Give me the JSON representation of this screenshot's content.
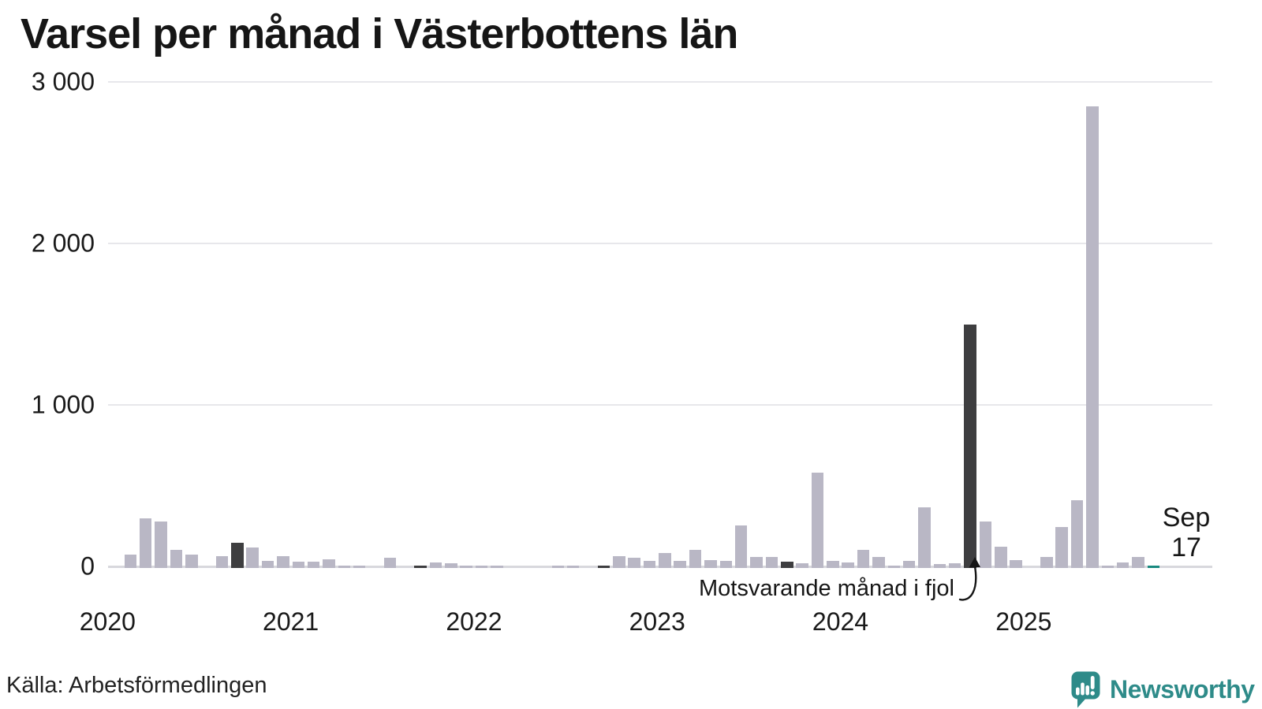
{
  "title": "Varsel per månad i Västerbottens län",
  "source": "Källa: Arbetsförmedlingen",
  "annotation": {
    "text": "Motsvarande månad i fjol"
  },
  "current_point_label": {
    "month": "Sep",
    "value": "17"
  },
  "branding": {
    "name": "Newsworthy"
  },
  "colors": {
    "bar_normal": "#b9b7c5",
    "bar_previous_year_month": "#3e3e40",
    "bar_current": "#18897f",
    "grid": "#e7e7eb",
    "axis_zero": "#d8d8dd",
    "text": "#1a1a1a",
    "brand_teal": "#2e8b89"
  },
  "chart_data": {
    "type": "bar",
    "title": "Varsel per månad i Västerbottens län",
    "xlabel": "",
    "ylabel": "",
    "ylim": [
      0,
      3000
    ],
    "grid": "horizontal",
    "legend": "none",
    "y_ticks": [
      {
        "value": 0,
        "label": "0"
      },
      {
        "value": 1000,
        "label": "1 000"
      },
      {
        "value": 2000,
        "label": "2 000"
      },
      {
        "value": 3000,
        "label": "3 000"
      }
    ],
    "x_year_labels": [
      "2020",
      "2021",
      "2022",
      "2023",
      "2024",
      "2025"
    ],
    "highlighted_month_each_year": "September",
    "months": [
      {
        "month": "2020-01",
        "value": 0,
        "kind": "normal"
      },
      {
        "month": "2020-02",
        "value": 85,
        "kind": "normal"
      },
      {
        "month": "2020-03",
        "value": 305,
        "kind": "normal"
      },
      {
        "month": "2020-04",
        "value": 290,
        "kind": "normal"
      },
      {
        "month": "2020-05",
        "value": 110,
        "kind": "normal"
      },
      {
        "month": "2020-06",
        "value": 85,
        "kind": "normal"
      },
      {
        "month": "2020-07",
        "value": 0,
        "kind": "normal"
      },
      {
        "month": "2020-08",
        "value": 75,
        "kind": "normal"
      },
      {
        "month": "2020-09",
        "value": 155,
        "kind": "previous_year_month"
      },
      {
        "month": "2020-10",
        "value": 127,
        "kind": "normal"
      },
      {
        "month": "2020-11",
        "value": 45,
        "kind": "normal"
      },
      {
        "month": "2020-12",
        "value": 75,
        "kind": "normal"
      },
      {
        "month": "2021-01",
        "value": 40,
        "kind": "normal"
      },
      {
        "month": "2021-02",
        "value": 41,
        "kind": "normal"
      },
      {
        "month": "2021-03",
        "value": 54,
        "kind": "normal"
      },
      {
        "month": "2021-04",
        "value": 15,
        "kind": "normal"
      },
      {
        "month": "2021-05",
        "value": 7,
        "kind": "normal"
      },
      {
        "month": "2021-06",
        "value": 0,
        "kind": "normal"
      },
      {
        "month": "2021-07",
        "value": 65,
        "kind": "normal"
      },
      {
        "month": "2021-08",
        "value": 0,
        "kind": "normal"
      },
      {
        "month": "2021-09",
        "value": 8,
        "kind": "previous_year_month"
      },
      {
        "month": "2021-10",
        "value": 36,
        "kind": "normal"
      },
      {
        "month": "2021-11",
        "value": 31,
        "kind": "normal"
      },
      {
        "month": "2021-12",
        "value": 11,
        "kind": "normal"
      },
      {
        "month": "2022-01",
        "value": 8,
        "kind": "normal"
      },
      {
        "month": "2022-02",
        "value": 12,
        "kind": "normal"
      },
      {
        "month": "2022-03",
        "value": 0,
        "kind": "normal"
      },
      {
        "month": "2022-04",
        "value": 0,
        "kind": "normal"
      },
      {
        "month": "2022-05",
        "value": 0,
        "kind": "normal"
      },
      {
        "month": "2022-06",
        "value": 13,
        "kind": "normal"
      },
      {
        "month": "2022-07",
        "value": 5,
        "kind": "normal"
      },
      {
        "month": "2022-08",
        "value": 0,
        "kind": "normal"
      },
      {
        "month": "2022-09",
        "value": 13,
        "kind": "previous_year_month"
      },
      {
        "month": "2022-10",
        "value": 75,
        "kind": "normal"
      },
      {
        "month": "2022-11",
        "value": 65,
        "kind": "normal"
      },
      {
        "month": "2022-12",
        "value": 45,
        "kind": "normal"
      },
      {
        "month": "2023-01",
        "value": 94,
        "kind": "normal"
      },
      {
        "month": "2023-02",
        "value": 46,
        "kind": "normal"
      },
      {
        "month": "2023-03",
        "value": 111,
        "kind": "normal"
      },
      {
        "month": "2023-04",
        "value": 49,
        "kind": "normal"
      },
      {
        "month": "2023-05",
        "value": 42,
        "kind": "normal"
      },
      {
        "month": "2023-06",
        "value": 265,
        "kind": "normal"
      },
      {
        "month": "2023-07",
        "value": 70,
        "kind": "normal"
      },
      {
        "month": "2023-08",
        "value": 70,
        "kind": "normal"
      },
      {
        "month": "2023-09",
        "value": 37,
        "kind": "previous_year_month"
      },
      {
        "month": "2023-10",
        "value": 29,
        "kind": "normal"
      },
      {
        "month": "2023-11",
        "value": 590,
        "kind": "normal"
      },
      {
        "month": "2023-12",
        "value": 46,
        "kind": "normal"
      },
      {
        "month": "2024-01",
        "value": 33,
        "kind": "normal"
      },
      {
        "month": "2024-02",
        "value": 110,
        "kind": "normal"
      },
      {
        "month": "2024-03",
        "value": 68,
        "kind": "normal"
      },
      {
        "month": "2024-04",
        "value": 8,
        "kind": "normal"
      },
      {
        "month": "2024-05",
        "value": 44,
        "kind": "normal"
      },
      {
        "month": "2024-06",
        "value": 375,
        "kind": "normal"
      },
      {
        "month": "2024-07",
        "value": 24,
        "kind": "normal"
      },
      {
        "month": "2024-08",
        "value": 29,
        "kind": "normal"
      },
      {
        "month": "2024-09",
        "value": 1505,
        "kind": "previous_year_month"
      },
      {
        "month": "2024-10",
        "value": 290,
        "kind": "normal"
      },
      {
        "month": "2024-11",
        "value": 130,
        "kind": "normal"
      },
      {
        "month": "2024-12",
        "value": 49,
        "kind": "normal"
      },
      {
        "month": "2025-01",
        "value": 0,
        "kind": "normal"
      },
      {
        "month": "2025-02",
        "value": 70,
        "kind": "normal"
      },
      {
        "month": "2025-03",
        "value": 255,
        "kind": "normal"
      },
      {
        "month": "2025-04",
        "value": 420,
        "kind": "normal"
      },
      {
        "month": "2025-05",
        "value": 2860,
        "kind": "normal"
      },
      {
        "month": "2025-06",
        "value": 15,
        "kind": "normal"
      },
      {
        "month": "2025-07",
        "value": 33,
        "kind": "normal"
      },
      {
        "month": "2025-08",
        "value": 70,
        "kind": "normal"
      },
      {
        "month": "2025-09",
        "value": 17,
        "kind": "current"
      }
    ]
  }
}
